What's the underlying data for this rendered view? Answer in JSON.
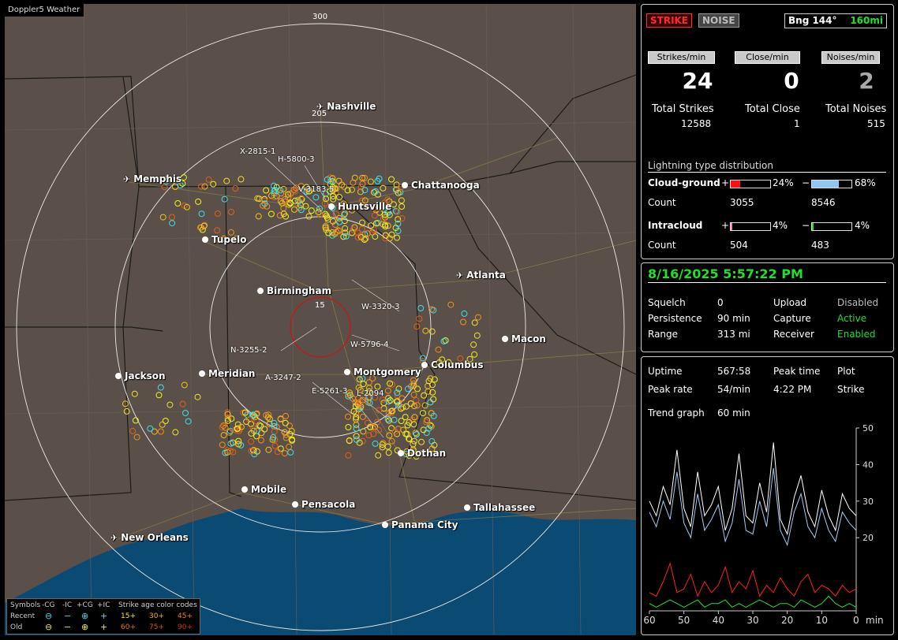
{
  "app_title": "Doppler5 Weather",
  "map": {
    "range_labels": [
      "300",
      "205",
      "15"
    ],
    "cities": [
      {
        "name": "Nashville",
        "kind": "airport"
      },
      {
        "name": "Chattanooga",
        "kind": "city"
      },
      {
        "name": "Memphis",
        "kind": "airport"
      },
      {
        "name": "Huntsville",
        "kind": "city"
      },
      {
        "name": "Tupelo",
        "kind": "city"
      },
      {
        "name": "Atlanta",
        "kind": "airport"
      },
      {
        "name": "Birmingham",
        "kind": "city"
      },
      {
        "name": "Macon",
        "kind": "city"
      },
      {
        "name": "Columbus",
        "kind": "city"
      },
      {
        "name": "Jackson",
        "kind": "city"
      },
      {
        "name": "Meridian",
        "kind": "city"
      },
      {
        "name": "Montgomery",
        "kind": "city"
      },
      {
        "name": "Dothan",
        "kind": "city"
      },
      {
        "name": "Mobile",
        "kind": "city"
      },
      {
        "name": "Pensacola",
        "kind": "city"
      },
      {
        "name": "Tallahassee",
        "kind": "city"
      },
      {
        "name": "Panama City",
        "kind": "city"
      },
      {
        "name": "New Orleans",
        "kind": "airport"
      }
    ],
    "track_labels": [
      "X-2815-1",
      "H-5800-3",
      "V-3183-5",
      "W-3320-3",
      "W-5796-4",
      "N-3255-2",
      "A-3247-2",
      "E-5261-3",
      "L-2094"
    ]
  },
  "legend": {
    "symbols_label": "Symbols",
    "cols": [
      "-CG",
      "-IC",
      "+CG",
      "+IC"
    ],
    "recent_label": "Recent",
    "old_label": "Old",
    "age_title": "Strike age color codes",
    "recent_ages": [
      "15+",
      "30+",
      "45+"
    ],
    "old_ages": [
      "60+",
      "75+",
      "90+"
    ]
  },
  "status": {
    "strike_btn": "STRIKE",
    "noise_btn": "NOISE",
    "bearing": "Bng 144°",
    "distance": "160mi"
  },
  "rates": {
    "strikes_label": "Strikes/min",
    "close_label": "Close/min",
    "noises_label": "Noises/min",
    "strikes": "24",
    "close": "0",
    "noises": "2",
    "total_strikes_label": "Total Strikes",
    "total_close_label": "Total Close",
    "total_noises_label": "Total Noises",
    "total_strikes": "12588",
    "total_close": "1",
    "total_noises": "515"
  },
  "distribution": {
    "title": "Lightning type distribution",
    "cg_label": "Cloud-ground",
    "ic_label": "Intracloud",
    "count_label": "Count",
    "plus": "+",
    "minus": "−",
    "cg_pos_pct": "24%",
    "cg_neg_pct": "68%",
    "ic_pos_pct": "4%",
    "ic_neg_pct": "4%",
    "cg_pos_frac": 0.24,
    "cg_neg_frac": 0.68,
    "ic_pos_frac": 0.04,
    "ic_neg_frac": 0.04,
    "cg_pos_count": "3055",
    "cg_neg_count": "8546",
    "ic_pos_count": "504",
    "ic_neg_count": "483",
    "colors": {
      "cg_pos": "#ff1010",
      "cg_neg": "#8ec8f0",
      "ic_pos": "#ff80c0",
      "ic_neg": "#20e040"
    }
  },
  "settings": {
    "datetime": "8/16/2025 5:57:22 PM",
    "squelch_label": "Squelch",
    "squelch": "0",
    "upload_label": "Upload",
    "upload": "Disabled",
    "persistence_label": "Persistence",
    "persistence": "90 min",
    "capture_label": "Capture",
    "capture": "Active",
    "range_label": "Range",
    "range": "313 mi",
    "receiver_label": "Receiver",
    "receiver": "Enabled"
  },
  "stats": {
    "uptime_label": "Uptime",
    "uptime": "567:58",
    "peak_time_label": "Peak time",
    "plot_label": "Plot",
    "peak_rate_label": "Peak rate",
    "peak_rate": "54/min",
    "peak_time": "4:22 PM",
    "plot": "Strike",
    "trend_label": "Trend graph",
    "trend": "60 min"
  },
  "chart_data": {
    "type": "line",
    "x": [
      60,
      58,
      56,
      54,
      52,
      50,
      48,
      46,
      44,
      42,
      40,
      38,
      36,
      34,
      32,
      30,
      28,
      26,
      24,
      22,
      20,
      18,
      16,
      14,
      12,
      10,
      8,
      6,
      4,
      2,
      0
    ],
    "x_ticks": [
      "60",
      "50",
      "40",
      "30",
      "20",
      "10",
      "0"
    ],
    "x_unit": "min",
    "y_ticks": [
      "50",
      "40",
      "30",
      "20"
    ],
    "ylim": [
      0,
      50
    ],
    "series": [
      {
        "color": "#ffffff",
        "values": [
          30,
          26,
          34,
          29,
          44,
          28,
          23,
          38,
          26,
          29,
          34,
          22,
          28,
          43,
          26,
          24,
          35,
          27,
          46,
          25,
          21,
          31,
          37,
          27,
          23,
          33,
          26,
          22,
          32,
          28,
          26
        ]
      },
      {
        "color": "#a8c8f0",
        "values": [
          27,
          23,
          30,
          25,
          38,
          24,
          20,
          32,
          22,
          25,
          29,
          19,
          24,
          36,
          22,
          21,
          30,
          23,
          39,
          22,
          18,
          27,
          32,
          23,
          20,
          28,
          22,
          19,
          27,
          24,
          22
        ]
      },
      {
        "color": "#ff2020",
        "values": [
          5,
          4,
          8,
          13,
          5,
          6,
          10,
          4,
          8,
          5,
          7,
          12,
          5,
          8,
          6,
          11,
          4,
          7,
          5,
          9,
          6,
          4,
          8,
          10,
          5,
          7,
          6,
          4,
          7,
          5,
          6
        ]
      },
      {
        "color": "#20e040",
        "values": [
          2,
          1,
          2,
          3,
          2,
          1,
          2,
          3,
          1,
          2,
          2,
          3,
          1,
          2,
          1,
          2,
          3,
          2,
          1,
          2,
          2,
          1,
          3,
          2,
          1,
          2,
          4,
          2,
          1,
          2,
          1
        ]
      }
    ]
  }
}
